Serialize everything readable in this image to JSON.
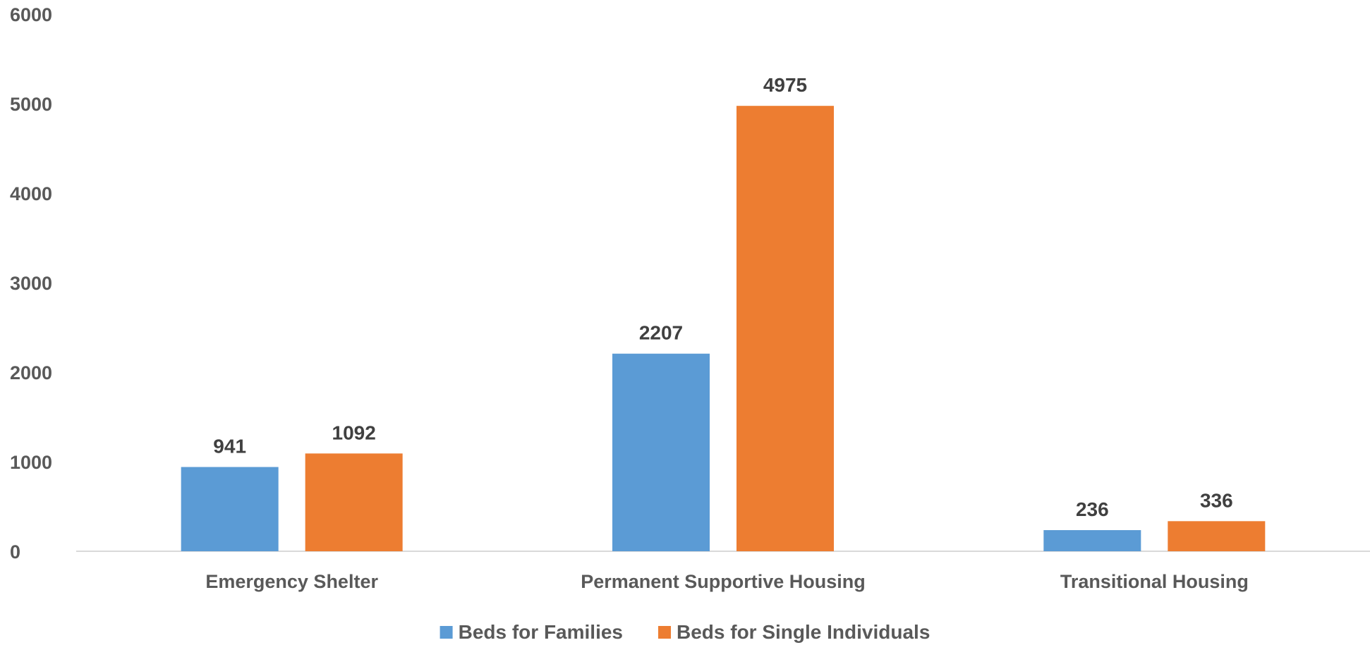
{
  "chart_data": {
    "type": "bar",
    "title": "",
    "xlabel": "",
    "ylabel": "",
    "ylim": [
      0,
      6000
    ],
    "yticks": [
      0,
      1000,
      2000,
      3000,
      4000,
      5000,
      6000
    ],
    "grid": false,
    "legend_position": "bottom",
    "categories": [
      "Emergency Shelter",
      "Permanent Supportive Housing",
      "Transitional Housing"
    ],
    "series": [
      {
        "name": "Beds for Families",
        "color": "#5B9BD5",
        "values": [
          941,
          2207,
          236
        ]
      },
      {
        "name": "Beds for Single Individuals",
        "color": "#ED7D31",
        "values": [
          1092,
          4975,
          336
        ]
      }
    ]
  }
}
